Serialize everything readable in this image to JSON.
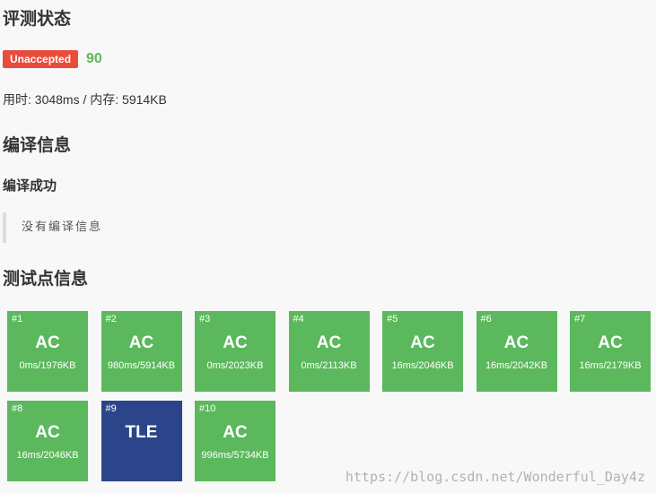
{
  "status": {
    "heading": "评测状态",
    "badge": "Unaccepted",
    "score": "90",
    "resource": "用时: 3048ms / 内存: 5914KB"
  },
  "compile": {
    "heading": "编译信息",
    "result": "编译成功",
    "message": "没有编译信息"
  },
  "tests": {
    "heading": "测试点信息",
    "cases": [
      {
        "num": "#1",
        "verdict": "AC",
        "res": "0ms/1976KB"
      },
      {
        "num": "#2",
        "verdict": "AC",
        "res": "980ms/5914KB"
      },
      {
        "num": "#3",
        "verdict": "AC",
        "res": "0ms/2023KB"
      },
      {
        "num": "#4",
        "verdict": "AC",
        "res": "0ms/2113KB"
      },
      {
        "num": "#5",
        "verdict": "AC",
        "res": "16ms/2046KB"
      },
      {
        "num": "#6",
        "verdict": "AC",
        "res": "16ms/2042KB"
      },
      {
        "num": "#7",
        "verdict": "AC",
        "res": "16ms/2179KB"
      },
      {
        "num": "#8",
        "verdict": "AC",
        "res": "16ms/2046KB"
      },
      {
        "num": "#9",
        "verdict": "TLE",
        "res": ""
      },
      {
        "num": "#10",
        "verdict": "AC",
        "res": "996ms/5734KB"
      }
    ]
  },
  "watermark": "https://blog.csdn.net/Wonderful_Day4z",
  "colors": {
    "ac": "#5cb85c",
    "tle": "#2c458a",
    "unaccepted": "#e74c3c"
  }
}
